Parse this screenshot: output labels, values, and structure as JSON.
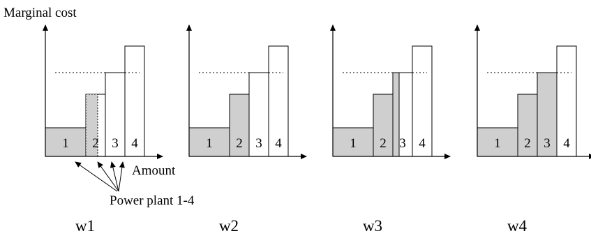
{
  "y_axis_label": "Marginal cost",
  "x_axis_label": "Amount",
  "annotation": "Power plant 1-4",
  "colors": {
    "filled": "#cfcfcf",
    "empty": "#ffffff",
    "line": "#000000"
  },
  "panels": [
    {
      "caption": "w1",
      "plants": [
        {
          "label": "1",
          "state": "filled"
        },
        {
          "label": "2",
          "state": "partial"
        },
        {
          "label": "3",
          "state": "empty"
        },
        {
          "label": "4",
          "state": "empty"
        }
      ]
    },
    {
      "caption": "w2",
      "plants": [
        {
          "label": "1",
          "state": "filled"
        },
        {
          "label": "2",
          "state": "filled"
        },
        {
          "label": "3",
          "state": "empty"
        },
        {
          "label": "4",
          "state": "empty"
        }
      ]
    },
    {
      "caption": "w3",
      "plants": [
        {
          "label": "1",
          "state": "filled"
        },
        {
          "label": "2",
          "state": "filled"
        },
        {
          "label": "3",
          "state": "partial"
        },
        {
          "label": "4",
          "state": "empty"
        }
      ]
    },
    {
      "caption": "w4",
      "plants": [
        {
          "label": "1",
          "state": "filled"
        },
        {
          "label": "2",
          "state": "filled"
        },
        {
          "label": "3",
          "state": "filled"
        },
        {
          "label": "4",
          "state": "empty"
        }
      ]
    }
  ]
}
